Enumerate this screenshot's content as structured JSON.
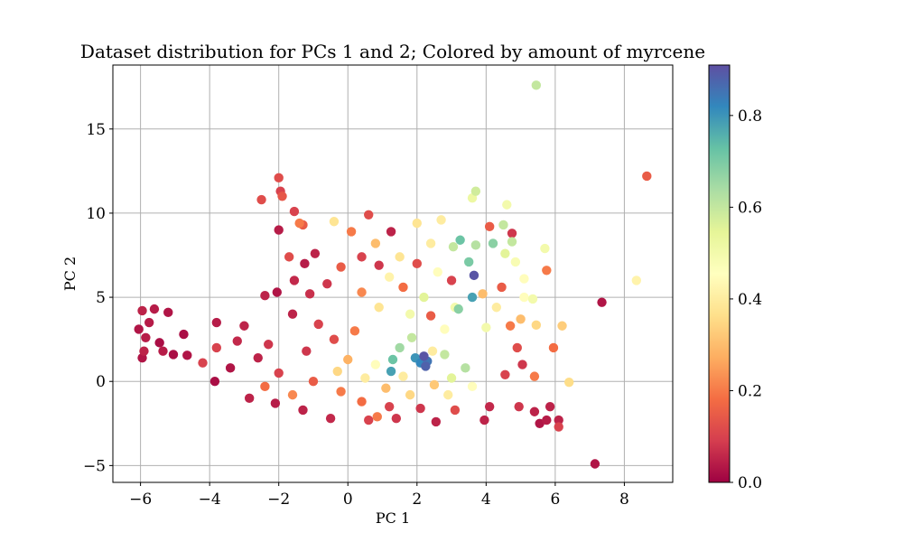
{
  "chart_data": {
    "type": "scatter",
    "title": "Dataset distribution for PCs 1 and 2; Colored by amount of myrcene",
    "xlabel": "PC 1",
    "ylabel": "PC 2",
    "xlim": [
      -6.8,
      9.4
    ],
    "ylim": [
      -6.0,
      18.8
    ],
    "xticks": [
      -6,
      -4,
      -2,
      0,
      2,
      4,
      6,
      8
    ],
    "xtick_labels": [
      "−6",
      "−4",
      "−2",
      "0",
      "2",
      "4",
      "6",
      "8"
    ],
    "yticks": [
      -5,
      0,
      5,
      10,
      15
    ],
    "ytick_labels": [
      "−5",
      "0",
      "5",
      "10",
      "15"
    ],
    "grid": true,
    "colormap": "Spectral",
    "colorbar": {
      "range": [
        0.0,
        0.91
      ],
      "ticks": [
        0.0,
        0.2,
        0.4,
        0.6,
        0.8
      ],
      "tick_labels": [
        "0.0",
        "0.2",
        "0.4",
        "0.6",
        "0.8"
      ]
    },
    "points": [
      {
        "x": 5.45,
        "y": 17.6,
        "c": 0.6
      },
      {
        "x": 8.65,
        "y": 12.2,
        "c": 0.15
      },
      {
        "x": 7.15,
        "y": -4.9,
        "c": 0.03
      },
      {
        "x": 7.35,
        "y": 4.7,
        "c": 0.03
      },
      {
        "x": 8.35,
        "y": 6.0,
        "c": 0.42
      },
      {
        "x": 6.4,
        "y": -0.05,
        "c": 0.36
      },
      {
        "x": 6.2,
        "y": 3.3,
        "c": 0.33
      },
      {
        "x": 5.95,
        "y": 2.0,
        "c": 0.18
      },
      {
        "x": 5.75,
        "y": 6.6,
        "c": 0.2
      },
      {
        "x": 5.7,
        "y": 7.9,
        "c": 0.5
      },
      {
        "x": -2.0,
        "y": 12.1,
        "c": 0.12
      },
      {
        "x": -1.95,
        "y": 11.3,
        "c": 0.1
      },
      {
        "x": -1.9,
        "y": 11.0,
        "c": 0.14
      },
      {
        "x": -2.5,
        "y": 10.8,
        "c": 0.12
      },
      {
        "x": -1.55,
        "y": 10.1,
        "c": 0.1
      },
      {
        "x": -1.4,
        "y": 9.4,
        "c": 0.2
      },
      {
        "x": 3.7,
        "y": 11.3,
        "c": 0.58
      },
      {
        "x": 3.6,
        "y": 10.9,
        "c": 0.52
      },
      {
        "x": 4.6,
        "y": 10.5,
        "c": 0.5
      },
      {
        "x": 4.5,
        "y": 9.3,
        "c": 0.6
      },
      {
        "x": 4.1,
        "y": 9.2,
        "c": 0.15
      },
      {
        "x": 4.75,
        "y": 8.8,
        "c": 0.08
      },
      {
        "x": 4.75,
        "y": 8.3,
        "c": 0.6
      },
      {
        "x": 4.2,
        "y": 8.2,
        "c": 0.68
      },
      {
        "x": 3.25,
        "y": 8.4,
        "c": 0.72
      },
      {
        "x": 3.65,
        "y": 6.3,
        "c": 0.9
      },
      {
        "x": 2.2,
        "y": 1.5,
        "c": 0.9
      },
      {
        "x": 2.3,
        "y": 1.2,
        "c": 0.85
      },
      {
        "x": 2.1,
        "y": 1.1,
        "c": 0.82
      },
      {
        "x": 2.25,
        "y": 0.9,
        "c": 0.88
      },
      {
        "x": 1.3,
        "y": 1.3,
        "c": 0.72
      },
      {
        "x": 1.95,
        "y": 1.4,
        "c": 0.8
      },
      {
        "x": 1.25,
        "y": 0.6,
        "c": 0.78
      },
      {
        "x": 3.6,
        "y": 5.0,
        "c": 0.78
      },
      {
        "x": 3.2,
        "y": 4.3,
        "c": 0.68
      },
      {
        "x": -5.95,
        "y": 4.2,
        "c": 0.05
      },
      {
        "x": -5.6,
        "y": 4.3,
        "c": 0.04
      },
      {
        "x": -5.2,
        "y": 4.1,
        "c": 0.03
      },
      {
        "x": -5.75,
        "y": 3.5,
        "c": 0.04
      },
      {
        "x": -6.05,
        "y": 3.1,
        "c": 0.03
      },
      {
        "x": -5.85,
        "y": 2.6,
        "c": 0.04
      },
      {
        "x": -5.45,
        "y": 2.3,
        "c": 0.02
      },
      {
        "x": -5.9,
        "y": 1.8,
        "c": 0.05
      },
      {
        "x": -5.95,
        "y": 1.4,
        "c": 0.03
      },
      {
        "x": -5.35,
        "y": 1.8,
        "c": 0.04
      },
      {
        "x": -5.05,
        "y": 1.6,
        "c": 0.02
      },
      {
        "x": -4.65,
        "y": 1.55,
        "c": 0.03
      },
      {
        "x": -4.75,
        "y": 2.8,
        "c": 0.02
      },
      {
        "x": -3.8,
        "y": 3.5,
        "c": 0.04
      },
      {
        "x": -3.8,
        "y": 2.0,
        "c": 0.1
      },
      {
        "x": -3.2,
        "y": 2.4,
        "c": 0.06
      },
      {
        "x": -3.85,
        "y": 0.0,
        "c": 0.02
      },
      {
        "x": -4.2,
        "y": 1.1,
        "c": 0.1
      },
      {
        "x": -3.0,
        "y": 3.3,
        "c": 0.05
      },
      {
        "x": -2.3,
        "y": 2.2,
        "c": 0.08
      },
      {
        "x": -2.4,
        "y": 5.1,
        "c": 0.05
      },
      {
        "x": -2.05,
        "y": 5.3,
        "c": 0.03
      },
      {
        "x": -2.0,
        "y": 9.0,
        "c": 0.04
      },
      {
        "x": 0.6,
        "y": 9.9,
        "c": 0.12
      },
      {
        "x": 2.7,
        "y": 9.6,
        "c": 0.4
      },
      {
        "x": 2.0,
        "y": 9.4,
        "c": 0.38
      },
      {
        "x": 3.05,
        "y": 8.0,
        "c": 0.6
      },
      {
        "x": 3.7,
        "y": 8.1,
        "c": 0.62
      },
      {
        "x": 4.55,
        "y": 7.6,
        "c": 0.55
      },
      {
        "x": 4.85,
        "y": 7.1,
        "c": 0.48
      },
      {
        "x": 5.1,
        "y": 6.1,
        "c": 0.45
      },
      {
        "x": 5.1,
        "y": 5.0,
        "c": 0.45
      },
      {
        "x": 5.35,
        "y": 4.9,
        "c": 0.5
      },
      {
        "x": 5.0,
        "y": 3.7,
        "c": 0.3
      },
      {
        "x": 5.45,
        "y": 3.35,
        "c": 0.35
      },
      {
        "x": 4.7,
        "y": 3.3,
        "c": 0.2
      },
      {
        "x": 4.0,
        "y": 3.2,
        "c": 0.5
      },
      {
        "x": 4.3,
        "y": 4.4,
        "c": 0.4
      },
      {
        "x": 4.45,
        "y": 5.6,
        "c": 0.15
      },
      {
        "x": 3.9,
        "y": 5.2,
        "c": 0.3
      },
      {
        "x": 3.5,
        "y": 7.1,
        "c": 0.7
      },
      {
        "x": 3.1,
        "y": 4.4,
        "c": 0.5
      },
      {
        "x": 4.9,
        "y": 2.0,
        "c": 0.12
      },
      {
        "x": 4.55,
        "y": 0.4,
        "c": 0.1
      },
      {
        "x": 5.4,
        "y": 0.3,
        "c": 0.2
      },
      {
        "x": 5.05,
        "y": 1.0,
        "c": 0.08
      },
      {
        "x": 5.85,
        "y": -1.5,
        "c": 0.05
      },
      {
        "x": 5.75,
        "y": -2.3,
        "c": 0.04
      },
      {
        "x": 5.55,
        "y": -2.5,
        "c": 0.03
      },
      {
        "x": 5.4,
        "y": -1.8,
        "c": 0.05
      },
      {
        "x": 6.1,
        "y": -2.3,
        "c": 0.05
      },
      {
        "x": 6.1,
        "y": -2.7,
        "c": 0.1
      },
      {
        "x": 4.95,
        "y": -1.5,
        "c": 0.08
      },
      {
        "x": 3.95,
        "y": -2.3,
        "c": 0.05
      },
      {
        "x": 2.55,
        "y": -2.4,
        "c": 0.05
      },
      {
        "x": 0.6,
        "y": -2.3,
        "c": 0.1
      },
      {
        "x": 0.85,
        "y": -2.1,
        "c": 0.2
      },
      {
        "x": 1.4,
        "y": -2.2,
        "c": 0.08
      },
      {
        "x": -0.5,
        "y": -2.2,
        "c": 0.06
      },
      {
        "x": -1.3,
        "y": -1.7,
        "c": 0.05
      },
      {
        "x": -2.1,
        "y": -1.3,
        "c": 0.04
      },
      {
        "x": -2.85,
        "y": -1.0,
        "c": 0.05
      },
      {
        "x": 1.85,
        "y": 2.6,
        "c": 0.6
      },
      {
        "x": 1.5,
        "y": 2.0,
        "c": 0.65
      },
      {
        "x": 2.8,
        "y": 1.6,
        "c": 0.6
      },
      {
        "x": 3.4,
        "y": 0.8,
        "c": 0.62
      },
      {
        "x": 3.0,
        "y": 0.2,
        "c": 0.55
      },
      {
        "x": 2.45,
        "y": 1.8,
        "c": 0.4
      },
      {
        "x": 3.6,
        "y": -0.3,
        "c": 0.45
      },
      {
        "x": 2.9,
        "y": -0.8,
        "c": 0.4
      },
      {
        "x": 1.8,
        "y": -0.8,
        "c": 0.35
      },
      {
        "x": 1.1,
        "y": -0.4,
        "c": 0.3
      },
      {
        "x": 0.5,
        "y": 0.2,
        "c": 0.4
      },
      {
        "x": -0.3,
        "y": 0.6,
        "c": 0.35
      },
      {
        "x": 2.2,
        "y": 5.0,
        "c": 0.55
      },
      {
        "x": 2.6,
        "y": 6.5,
        "c": 0.45
      },
      {
        "x": 1.2,
        "y": 6.2,
        "c": 0.42
      },
      {
        "x": 1.5,
        "y": 7.4,
        "c": 0.38
      },
      {
        "x": 0.8,
        "y": 8.2,
        "c": 0.3
      },
      {
        "x": 0.1,
        "y": 8.9,
        "c": 0.2
      },
      {
        "x": -0.4,
        "y": 9.5,
        "c": 0.38
      },
      {
        "x": -1.3,
        "y": 9.3,
        "c": 0.15
      },
      {
        "x": -0.95,
        "y": 7.6,
        "c": 0.05
      },
      {
        "x": -1.7,
        "y": 7.4,
        "c": 0.12
      },
      {
        "x": -1.25,
        "y": 7.0,
        "c": 0.04
      },
      {
        "x": -1.55,
        "y": 6.0,
        "c": 0.06
      },
      {
        "x": -1.1,
        "y": 5.2,
        "c": 0.07
      },
      {
        "x": -1.6,
        "y": 4.0,
        "c": 0.05
      },
      {
        "x": -0.85,
        "y": 3.4,
        "c": 0.1
      },
      {
        "x": -0.6,
        "y": 5.8,
        "c": 0.08
      },
      {
        "x": -0.2,
        "y": 6.8,
        "c": 0.15
      },
      {
        "x": 0.4,
        "y": 7.4,
        "c": 0.1
      },
      {
        "x": 0.9,
        "y": 6.9,
        "c": 0.08
      },
      {
        "x": 1.25,
        "y": 8.9,
        "c": 0.05
      },
      {
        "x": 0.4,
        "y": 5.3,
        "c": 0.22
      },
      {
        "x": 0.9,
        "y": 4.4,
        "c": 0.38
      },
      {
        "x": 1.8,
        "y": 4.0,
        "c": 0.5
      },
      {
        "x": 2.8,
        "y": 3.1,
        "c": 0.45
      },
      {
        "x": 2.4,
        "y": 3.9,
        "c": 0.15
      },
      {
        "x": 1.6,
        "y": 5.6,
        "c": 0.18
      },
      {
        "x": 3.0,
        "y": 6.0,
        "c": 0.1
      },
      {
        "x": 2.0,
        "y": 7.0,
        "c": 0.12
      },
      {
        "x": 2.4,
        "y": 8.2,
        "c": 0.4
      },
      {
        "x": 0.2,
        "y": 3.0,
        "c": 0.2
      },
      {
        "x": -0.4,
        "y": 2.5,
        "c": 0.12
      },
      {
        "x": -1.2,
        "y": 1.8,
        "c": 0.08
      },
      {
        "x": -2.6,
        "y": 1.4,
        "c": 0.05
      },
      {
        "x": -3.4,
        "y": 0.8,
        "c": 0.03
      },
      {
        "x": -2.0,
        "y": 0.5,
        "c": 0.1
      },
      {
        "x": -1.0,
        "y": 0.0,
        "c": 0.15
      },
      {
        "x": -0.2,
        "y": -0.6,
        "c": 0.2
      },
      {
        "x": 0.4,
        "y": -1.2,
        "c": 0.18
      },
      {
        "x": 1.2,
        "y": -1.5,
        "c": 0.1
      },
      {
        "x": 2.1,
        "y": -1.6,
        "c": 0.08
      },
      {
        "x": 3.1,
        "y": -1.7,
        "c": 0.12
      },
      {
        "x": 4.1,
        "y": -1.5,
        "c": 0.06
      },
      {
        "x": -1.6,
        "y": -0.8,
        "c": 0.22
      },
      {
        "x": -2.4,
        "y": -0.3,
        "c": 0.18
      },
      {
        "x": 0.0,
        "y": 1.3,
        "c": 0.28
      },
      {
        "x": 0.8,
        "y": 1.0,
        "c": 0.45
      },
      {
        "x": 1.6,
        "y": 0.3,
        "c": 0.4
      },
      {
        "x": 2.5,
        "y": -0.2,
        "c": 0.32
      }
    ]
  }
}
